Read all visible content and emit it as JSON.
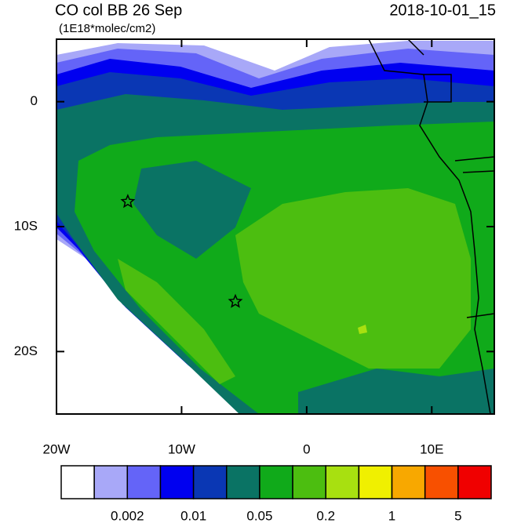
{
  "header": {
    "title": "CO col BB 26 Sep",
    "units": "(1E18*molec/cm2)",
    "datetime": "2018-10-01_15"
  },
  "map": {
    "lon_range": [
      -20,
      15
    ],
    "lat_range": [
      -25,
      5
    ],
    "lon_ticks": [
      {
        "value": -20,
        "label": "20W"
      },
      {
        "value": -10,
        "label": "10W"
      },
      0,
      {
        "value": 10,
        "label": "10E"
      }
    ],
    "lat_ticks": [
      0,
      {
        "value": -10,
        "label": "10S"
      },
      {
        "value": -20,
        "label": "20S"
      }
    ],
    "markers": [
      {
        "lon": -14.3,
        "lat": -8
      },
      {
        "lon": -5.7,
        "lat": -16
      }
    ]
  },
  "colorbar": {
    "colors": [
      "#ffffff",
      "#a8a8f8",
      "#6464f8",
      "#0000f0",
      "#0a37b4",
      "#0a7364",
      "#10aa1a",
      "#4cbe10",
      "#a8e010",
      "#f0f000",
      "#f8a800",
      "#f85000",
      "#f00000"
    ],
    "labels": [
      "0.002",
      "0.01",
      "0.05",
      "0.2",
      "1",
      "5"
    ]
  }
}
